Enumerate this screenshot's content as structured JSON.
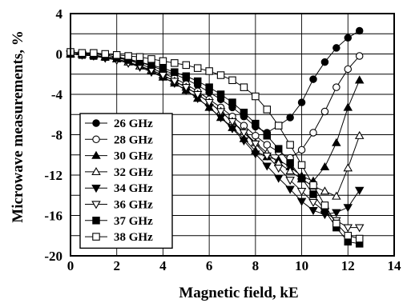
{
  "chart_data": {
    "type": "line",
    "title": "",
    "xlabel": "Magnetic field, kE",
    "ylabel": "Microwave measurements, %",
    "xlim": [
      0,
      14
    ],
    "ylim": [
      -20,
      4
    ],
    "x_ticks": [
      "0",
      "2",
      "4",
      "6",
      "8",
      "10",
      "12",
      "14"
    ],
    "y_ticks": [
      "4",
      "0",
      "-4",
      "-8",
      "-12",
      "-16",
      "-20"
    ],
    "grid": true,
    "legend_position": "lower-left",
    "series": [
      {
        "name": "26 GHz",
        "marker": "circle-filled",
        "x": [
          0,
          0.5,
          1,
          1.5,
          2,
          2.5,
          3,
          3.5,
          4,
          4.5,
          5,
          5.5,
          6,
          6.5,
          7,
          7.5,
          8,
          8.5,
          9,
          9.5,
          10,
          10.5,
          11,
          11.5,
          12,
          12.5
        ],
        "y": [
          0,
          0.1,
          0,
          -0.1,
          -0.3,
          -0.5,
          -0.8,
          -1.2,
          -1.6,
          -2,
          -2.5,
          -3.1,
          -3.8,
          -4.5,
          -5.3,
          -6.2,
          -7.2,
          -7.8,
          -7.1,
          -6.3,
          -4.8,
          -2.5,
          -0.8,
          0.6,
          1.6,
          2.3
        ]
      },
      {
        "name": "28 GHz",
        "marker": "circle-open",
        "x": [
          0,
          0.5,
          1,
          1.5,
          2,
          2.5,
          3,
          3.5,
          4,
          4.5,
          5,
          5.5,
          6,
          6.5,
          7,
          7.5,
          8,
          8.5,
          9,
          9.5,
          10,
          10.5,
          11,
          11.5,
          12,
          12.5
        ],
        "y": [
          0,
          0.1,
          0.1,
          -0.1,
          -0.3,
          -0.6,
          -1,
          -1.4,
          -1.9,
          -2.4,
          -3,
          -3.7,
          -4.5,
          -5.3,
          -6.2,
          -7.1,
          -8.1,
          -9,
          -9.7,
          -10.3,
          -9.5,
          -7.8,
          -5.7,
          -3.3,
          -1.5,
          -0.2
        ]
      },
      {
        "name": "30 GHz",
        "marker": "triangle-filled",
        "x": [
          0,
          0.5,
          1,
          1.5,
          2,
          2.5,
          3,
          3.5,
          4,
          4.5,
          5,
          5.5,
          6,
          6.5,
          7,
          7.5,
          8,
          8.5,
          9,
          9.5,
          10,
          10.5,
          11,
          11.5,
          12,
          12.5
        ],
        "y": [
          0,
          0,
          -0.1,
          -0.3,
          -0.5,
          -0.8,
          -1.2,
          -1.7,
          -2.3,
          -2.9,
          -3.6,
          -4.4,
          -5.3,
          -6.3,
          -7.3,
          -8.4,
          -9.6,
          -10.2,
          -10.5,
          -11.2,
          -12.1,
          -12.6,
          -11.2,
          -8.8,
          -5.3,
          -2.6
        ]
      },
      {
        "name": "32 GHz",
        "marker": "triangle-open",
        "x": [
          0,
          0.5,
          1,
          1.5,
          2,
          2.5,
          3,
          3.5,
          4,
          4.5,
          5,
          5.5,
          6,
          6.5,
          7,
          7.5,
          8,
          8.5,
          9,
          9.5,
          10,
          10.5,
          11,
          11.5,
          12,
          12.5
        ],
        "y": [
          0,
          0,
          -0.1,
          -0.3,
          -0.5,
          -0.8,
          -1.2,
          -1.6,
          -2.1,
          -2.7,
          -3.3,
          -4,
          -4.8,
          -5.7,
          -6.7,
          -7.7,
          -8.8,
          -9.8,
          -10.8,
          -11.6,
          -12.4,
          -13.1,
          -13.6,
          -14.1,
          -11.3,
          -8.1
        ]
      },
      {
        "name": "34 GHz",
        "marker": "triangle-down-filled",
        "x": [
          0,
          0.5,
          1,
          1.5,
          2,
          2.5,
          3,
          3.5,
          4,
          4.5,
          5,
          5.5,
          6,
          6.5,
          7,
          7.5,
          8,
          8.5,
          9,
          9.5,
          10,
          10.5,
          11,
          11.5,
          12,
          12.5
        ],
        "y": [
          0,
          -0.1,
          -0.2,
          -0.4,
          -0.6,
          -0.9,
          -1.3,
          -1.8,
          -2.3,
          -2.9,
          -3.6,
          -4.4,
          -5.3,
          -6.3,
          -7.4,
          -8.6,
          -9.9,
          -11.1,
          -12.3,
          -13.4,
          -14.6,
          -15.5,
          -15.9,
          -15.7,
          -15.2,
          -13.5
        ]
      },
      {
        "name": "36 GHz",
        "marker": "triangle-down-open",
        "x": [
          0,
          0.5,
          1,
          1.5,
          2,
          2.5,
          3,
          3.5,
          4,
          4.5,
          5,
          5.5,
          6,
          6.5,
          7,
          7.5,
          8,
          8.5,
          9,
          9.5,
          10,
          10.5,
          11,
          11.5,
          12,
          12.5
        ],
        "y": [
          0,
          -0.1,
          -0.2,
          -0.4,
          -0.6,
          -0.9,
          -1.2,
          -1.6,
          -2.1,
          -2.7,
          -3.3,
          -4,
          -4.8,
          -5.7,
          -6.7,
          -7.8,
          -8.9,
          -10.1,
          -11.3,
          -12.5,
          -13.6,
          -14.7,
          -15.6,
          -16.5,
          -17.2,
          -17.2
        ]
      },
      {
        "name": "37 GHz",
        "marker": "square-filled",
        "x": [
          0,
          0.5,
          1,
          1.5,
          2,
          2.5,
          3,
          3.5,
          4,
          4.5,
          5,
          5.5,
          6,
          6.5,
          7,
          7.5,
          8,
          8.5,
          9,
          9.5,
          10,
          10.5,
          11,
          11.5,
          12,
          12.5
        ],
        "y": [
          0,
          -0.1,
          -0.2,
          -0.3,
          -0.4,
          -0.6,
          -0.8,
          -1.1,
          -1.4,
          -1.8,
          -2.2,
          -2.7,
          -3.3,
          -4,
          -4.8,
          -5.8,
          -6.9,
          -8.1,
          -9.4,
          -10.8,
          -12.3,
          -13.9,
          -15.5,
          -17.2,
          -18.6,
          -18.8
        ]
      },
      {
        "name": "38 GHz",
        "marker": "square-open",
        "x": [
          0,
          0.5,
          1,
          1.5,
          2,
          2.5,
          3,
          3.5,
          4,
          4.5,
          5,
          5.5,
          6,
          6.5,
          7,
          7.5,
          8,
          8.5,
          9,
          9.5,
          10,
          10.5,
          11,
          11.5,
          12,
          12.5
        ],
        "y": [
          0.2,
          0.1,
          0.1,
          0,
          -0.1,
          -0.2,
          -0.3,
          -0.5,
          -0.7,
          -0.9,
          -1.1,
          -1.4,
          -1.7,
          -2.1,
          -2.6,
          -3.3,
          -4.2,
          -5.5,
          -7.1,
          -9,
          -11,
          -13,
          -15,
          -16.8,
          -18,
          -18.3
        ]
      }
    ]
  }
}
